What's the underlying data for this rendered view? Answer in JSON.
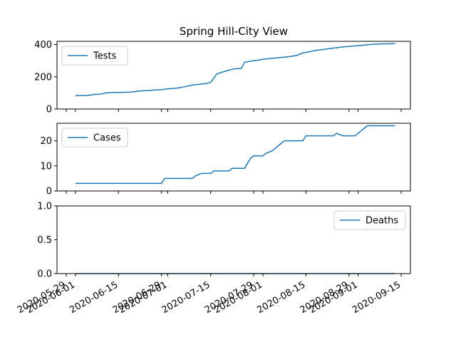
{
  "chart_data": {
    "type": "line",
    "title": "Spring Hill-City View",
    "shared_x_axis": true,
    "x_tick_labels": [
      "2020-05-29",
      "2020-06-01",
      "2020-06-15",
      "2020-06-29",
      "2020-07-01",
      "2020-07-15",
      "2020-07-29",
      "2020-08-01",
      "2020-08-15",
      "2020-08-29",
      "2020-09-01",
      "2020-09-15"
    ],
    "subplots": [
      {
        "series": [
          {
            "name": "Tests",
            "color": "#1f77b4",
            "points": [
              [
                "2020-06-01",
                83
              ],
              [
                "2020-06-03",
                84
              ],
              [
                "2020-06-05",
                84
              ],
              [
                "2020-06-07",
                90
              ],
              [
                "2020-06-09",
                92
              ],
              [
                "2020-06-11",
                100
              ],
              [
                "2020-06-13",
                103
              ],
              [
                "2020-06-15",
                103
              ],
              [
                "2020-06-17",
                104
              ],
              [
                "2020-06-19",
                105
              ],
              [
                "2020-06-21",
                110
              ],
              [
                "2020-06-23",
                113
              ],
              [
                "2020-06-25",
                115
              ],
              [
                "2020-06-27",
                118
              ],
              [
                "2020-06-29",
                120
              ],
              [
                "2020-07-01",
                125
              ],
              [
                "2020-07-03",
                128
              ],
              [
                "2020-07-05",
                132
              ],
              [
                "2020-07-07",
                140
              ],
              [
                "2020-07-09",
                148
              ],
              [
                "2020-07-11",
                153
              ],
              [
                "2020-07-13",
                157
              ],
              [
                "2020-07-15",
                165
              ],
              [
                "2020-07-17",
                218
              ],
              [
                "2020-07-19",
                230
              ],
              [
                "2020-07-21",
                242
              ],
              [
                "2020-07-23",
                250
              ],
              [
                "2020-07-25",
                252
              ],
              [
                "2020-07-26",
                290
              ],
              [
                "2020-07-28",
                297
              ],
              [
                "2020-07-30",
                302
              ],
              [
                "2020-08-01",
                308
              ],
              [
                "2020-08-04",
                315
              ],
              [
                "2020-08-07",
                320
              ],
              [
                "2020-08-10",
                326
              ],
              [
                "2020-08-12",
                332
              ],
              [
                "2020-08-14",
                348
              ],
              [
                "2020-08-16",
                355
              ],
              [
                "2020-08-18",
                363
              ],
              [
                "2020-08-21",
                370
              ],
              [
                "2020-08-24",
                378
              ],
              [
                "2020-08-27",
                385
              ],
              [
                "2020-08-30",
                390
              ],
              [
                "2020-09-02",
                395
              ],
              [
                "2020-09-05",
                400
              ],
              [
                "2020-09-08",
                403
              ],
              [
                "2020-09-11",
                405
              ],
              [
                "2020-09-13",
                406
              ]
            ]
          }
        ],
        "ylim": [
          0,
          420
        ],
        "yticks": [
          0,
          200,
          400
        ],
        "legend_loc": "upper left"
      },
      {
        "series": [
          {
            "name": "Cases",
            "color": "#1f77b4",
            "points": [
              [
                "2020-06-01",
                3
              ],
              [
                "2020-06-29",
                3
              ],
              [
                "2020-06-30",
                5
              ],
              [
                "2020-07-09",
                5
              ],
              [
                "2020-07-10",
                6
              ],
              [
                "2020-07-12",
                7
              ],
              [
                "2020-07-15",
                7
              ],
              [
                "2020-07-16",
                8
              ],
              [
                "2020-07-21",
                8
              ],
              [
                "2020-07-22",
                9
              ],
              [
                "2020-07-26",
                9
              ],
              [
                "2020-07-27",
                11
              ],
              [
                "2020-07-28",
                13
              ],
              [
                "2020-07-29",
                14
              ],
              [
                "2020-08-01",
                14
              ],
              [
                "2020-08-02",
                15
              ],
              [
                "2020-08-04",
                16
              ],
              [
                "2020-08-06",
                18
              ],
              [
                "2020-08-08",
                20
              ],
              [
                "2020-08-14",
                20
              ],
              [
                "2020-08-15",
                22
              ],
              [
                "2020-08-24",
                22
              ],
              [
                "2020-08-25",
                23
              ],
              [
                "2020-08-27",
                22
              ],
              [
                "2020-08-31",
                22
              ],
              [
                "2020-09-02",
                24
              ],
              [
                "2020-09-04",
                26
              ],
              [
                "2020-09-13",
                26
              ]
            ]
          }
        ],
        "ylim": [
          0,
          27
        ],
        "yticks": [
          0,
          10,
          20
        ],
        "legend_loc": "upper left"
      },
      {
        "series": [
          {
            "name": "Deaths",
            "color": "#1f77b4",
            "points": [
              [
                "2020-06-01",
                0
              ],
              [
                "2020-09-13",
                0
              ]
            ]
          }
        ],
        "ylim": [
          0,
          1
        ],
        "yticks": [
          0,
          0.5,
          1
        ],
        "ytick_labels": [
          "0.0",
          "0.5",
          "1.0"
        ],
        "legend_loc": "upper right"
      }
    ]
  }
}
